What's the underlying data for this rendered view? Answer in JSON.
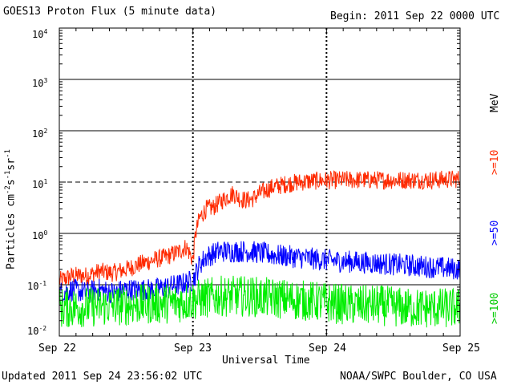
{
  "header": {
    "title": "GOES13 Proton Flux (5 minute data)",
    "begin": "Begin: 2011 Sep 22 0000 UTC"
  },
  "footer": {
    "updated": "Updated 2011 Sep 24 23:56:02 UTC",
    "source": "NOAA/SWPC Boulder, CO USA"
  },
  "colors": {
    "ge10": "#ff2a00",
    "ge50": "#0000ff",
    "ge100": "#00ee00",
    "axis": "#000000"
  },
  "chart_data": {
    "type": "line",
    "title": "GOES13 Proton Flux (5 minute data)",
    "xlabel": "Universal Time",
    "ylabel_parts": [
      "Particles cm",
      "-2",
      "s",
      "-1",
      "sr",
      "-1"
    ],
    "x_unit": "days since 2011 Sep 22 0000 UTC",
    "x_ticks": [
      {
        "x": 0,
        "label": "Sep 22"
      },
      {
        "x": 1,
        "label": "Sep 23"
      },
      {
        "x": 2,
        "label": "Sep 24"
      },
      {
        "x": 3,
        "label": "Sep 25"
      }
    ],
    "y_scale": "log",
    "ylim_exponent": [
      -2,
      4
    ],
    "y_ticks": [
      {
        "base": "10",
        "exp": "4"
      },
      {
        "base": "10",
        "exp": "3"
      },
      {
        "base": "10",
        "exp": "2"
      },
      {
        "base": "10",
        "exp": "1"
      },
      {
        "base": "10",
        "exp": "0"
      },
      {
        "base": "10",
        "exp": "-1"
      },
      {
        "base": "10",
        "exp": "-2"
      }
    ],
    "threshold_line": 10,
    "legend_units": "MeV",
    "series": [
      {
        "name": ">=10",
        "color": "#ff2a00",
        "x": [
          0,
          0.1,
          0.2,
          0.3,
          0.4,
          0.5,
          0.6,
          0.7,
          0.8,
          0.9,
          0.95,
          1.0,
          1.02,
          1.05,
          1.1,
          1.15,
          1.2,
          1.25,
          1.3,
          1.35,
          1.4,
          1.45,
          1.5,
          1.55,
          1.6,
          1.65,
          1.7,
          1.8,
          1.9,
          2.0,
          2.1,
          2.2,
          2.3,
          2.4,
          2.5,
          2.6,
          2.7,
          2.8,
          2.9,
          3.0
        ],
        "y": [
          0.12,
          0.15,
          0.15,
          0.18,
          0.17,
          0.2,
          0.25,
          0.3,
          0.35,
          0.45,
          0.55,
          0.3,
          1.0,
          2.0,
          3.0,
          3.2,
          4.0,
          5.0,
          6.0,
          4.8,
          4.4,
          4.8,
          6.0,
          7.0,
          8.0,
          8.5,
          9.2,
          10.0,
          10.5,
          10.8,
          11.0,
          11.0,
          11.0,
          11.0,
          10.9,
          11.0,
          11.0,
          11.0,
          11.3,
          11.5
        ],
        "noise": 0.18
      },
      {
        "name": ">=50",
        "color": "#0000ff",
        "x": [
          0,
          0.1,
          0.2,
          0.3,
          0.4,
          0.5,
          0.6,
          0.7,
          0.8,
          0.9,
          1.0,
          1.05,
          1.1,
          1.2,
          1.3,
          1.4,
          1.5,
          1.6,
          1.7,
          1.8,
          1.9,
          2.0,
          2.2,
          2.4,
          2.6,
          2.8,
          3.0
        ],
        "y": [
          0.07,
          0.08,
          0.07,
          0.08,
          0.07,
          0.08,
          0.08,
          0.08,
          0.09,
          0.1,
          0.12,
          0.25,
          0.35,
          0.45,
          0.45,
          0.45,
          0.42,
          0.38,
          0.36,
          0.34,
          0.32,
          0.3,
          0.28,
          0.26,
          0.24,
          0.22,
          0.2
        ],
        "noise": 0.22
      },
      {
        "name": ">=100",
        "color": "#00ee00",
        "x": [
          0,
          0.5,
          0.9,
          1.0,
          1.2,
          1.4,
          1.6,
          1.8,
          2.0,
          2.2,
          2.4,
          2.6,
          2.8,
          3.0
        ],
        "y": [
          0.035,
          0.04,
          0.045,
          0.05,
          0.06,
          0.06,
          0.055,
          0.05,
          0.045,
          0.04,
          0.04,
          0.035,
          0.035,
          0.035
        ],
        "noise": 0.4
      }
    ]
  }
}
